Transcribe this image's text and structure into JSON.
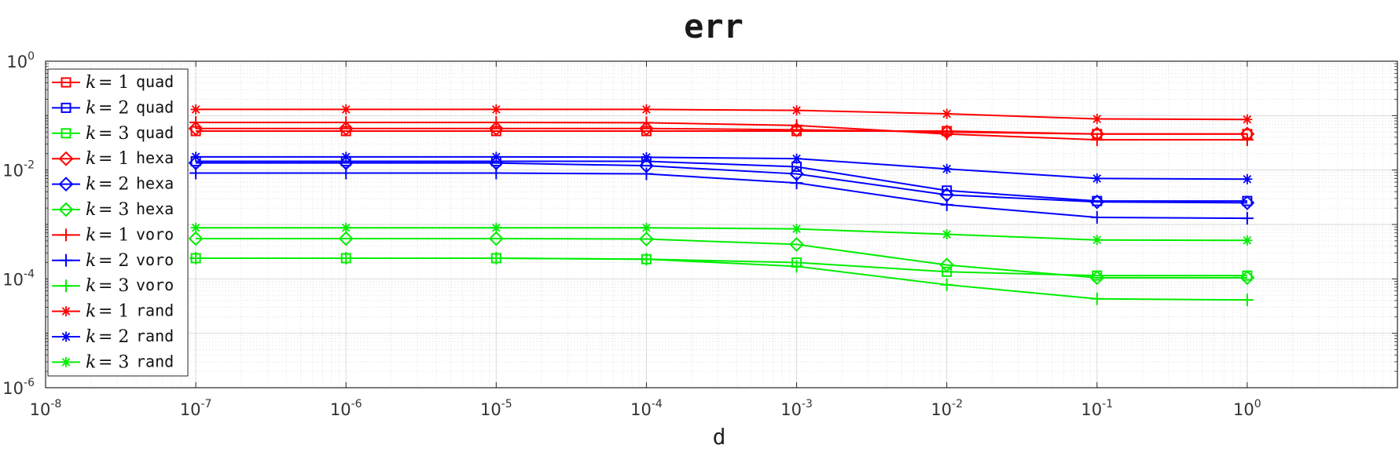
{
  "chart_data": {
    "type": "line",
    "title": "err",
    "xlabel": "d",
    "ylabel": "",
    "xscale": "log",
    "yscale": "log",
    "xlim": [
      1e-08,
      10
    ],
    "ylim": [
      1e-06,
      1
    ],
    "x_ticks": [
      {
        "base": "10",
        "exp": "-8"
      },
      {
        "base": "10",
        "exp": "-7"
      },
      {
        "base": "10",
        "exp": "-6"
      },
      {
        "base": "10",
        "exp": "-5"
      },
      {
        "base": "10",
        "exp": "-4"
      },
      {
        "base": "10",
        "exp": "-3"
      },
      {
        "base": "10",
        "exp": "-2"
      },
      {
        "base": "10",
        "exp": "-1"
      },
      {
        "base": "10",
        "exp": "0"
      }
    ],
    "y_ticks": [
      {
        "base": "10",
        "exp": "0"
      },
      {
        "base": "10",
        "exp": "-2"
      },
      {
        "base": "10",
        "exp": "-4"
      },
      {
        "base": "10",
        "exp": "-6"
      }
    ],
    "grid": true,
    "legend_position": "top-left",
    "x": [
      1e-07,
      1e-06,
      1e-05,
      0.0001,
      0.001,
      0.01,
      0.1,
      1
    ],
    "series": [
      {
        "name": "k = 1 quad",
        "k_label": "k",
        "eq_label": "= 1",
        "mesh_label": "quad",
        "color": "#ff0000",
        "marker": "square",
        "values": [
          0.052,
          0.052,
          0.052,
          0.052,
          0.052,
          0.052,
          0.046,
          0.046
        ]
      },
      {
        "name": "k = 2 quad",
        "k_label": "k",
        "eq_label": "= 2",
        "mesh_label": "quad",
        "color": "#0000ff",
        "marker": "square",
        "values": [
          0.0145,
          0.0145,
          0.0145,
          0.0145,
          0.0115,
          0.0042,
          0.0027,
          0.0027
        ]
      },
      {
        "name": "k = 3 quad",
        "k_label": "k",
        "eq_label": "= 3",
        "mesh_label": "quad",
        "color": "#00ee00",
        "marker": "square",
        "values": [
          0.00024,
          0.00024,
          0.00024,
          0.00023,
          0.0002,
          0.000135,
          0.000115,
          0.000115
        ]
      },
      {
        "name": "k = 1 hexa",
        "k_label": "k",
        "eq_label": "= 1",
        "mesh_label": "hexa",
        "color": "#ff0000",
        "marker": "diamond",
        "values": [
          0.058,
          0.058,
          0.058,
          0.058,
          0.055,
          0.05,
          0.046,
          0.046
        ]
      },
      {
        "name": "k = 2 hexa",
        "k_label": "k",
        "eq_label": "= 2",
        "mesh_label": "hexa",
        "color": "#0000ff",
        "marker": "diamond",
        "values": [
          0.0135,
          0.0135,
          0.0135,
          0.012,
          0.0085,
          0.0035,
          0.0026,
          0.0025
        ]
      },
      {
        "name": "k = 3 hexa",
        "k_label": "k",
        "eq_label": "= 3",
        "mesh_label": "hexa",
        "color": "#00ee00",
        "marker": "diamond",
        "values": [
          0.00055,
          0.00055,
          0.00055,
          0.00054,
          0.00043,
          0.00018,
          0.000105,
          0.000105
        ]
      },
      {
        "name": "k = 1 voro",
        "k_label": "k",
        "eq_label": "= 1",
        "mesh_label": "voro",
        "color": "#ff0000",
        "marker": "plus",
        "values": [
          0.075,
          0.075,
          0.075,
          0.074,
          0.066,
          0.046,
          0.036,
          0.036
        ]
      },
      {
        "name": "k = 2 voro",
        "k_label": "k",
        "eq_label": "= 2",
        "mesh_label": "voro",
        "color": "#0000ff",
        "marker": "plus",
        "values": [
          0.0088,
          0.0088,
          0.0088,
          0.0085,
          0.0058,
          0.0023,
          0.00135,
          0.0013
        ]
      },
      {
        "name": "k = 3 voro",
        "k_label": "k",
        "eq_label": "= 3",
        "mesh_label": "voro",
        "color": "#00ee00",
        "marker": "plus",
        "values": [
          0.00024,
          0.00024,
          0.00024,
          0.00023,
          0.00017,
          7.8e-05,
          4.3e-05,
          4.1e-05
        ]
      },
      {
        "name": "k = 1 rand",
        "k_label": "k",
        "eq_label": "= 1",
        "mesh_label": "rand",
        "color": "#ff0000",
        "marker": "star",
        "values": [
          0.13,
          0.13,
          0.13,
          0.13,
          0.125,
          0.108,
          0.087,
          0.085
        ]
      },
      {
        "name": "k = 2 rand",
        "k_label": "k",
        "eq_label": "= 2",
        "mesh_label": "rand",
        "color": "#0000ff",
        "marker": "star",
        "values": [
          0.0175,
          0.0175,
          0.0175,
          0.0172,
          0.0162,
          0.0105,
          0.007,
          0.0068
        ]
      },
      {
        "name": "k = 3 rand",
        "k_label": "k",
        "eq_label": "= 3",
        "mesh_label": "rand",
        "color": "#00ee00",
        "marker": "star",
        "values": [
          0.00087,
          0.00087,
          0.00087,
          0.00087,
          0.00083,
          0.00066,
          0.00052,
          0.00051
        ]
      }
    ]
  }
}
